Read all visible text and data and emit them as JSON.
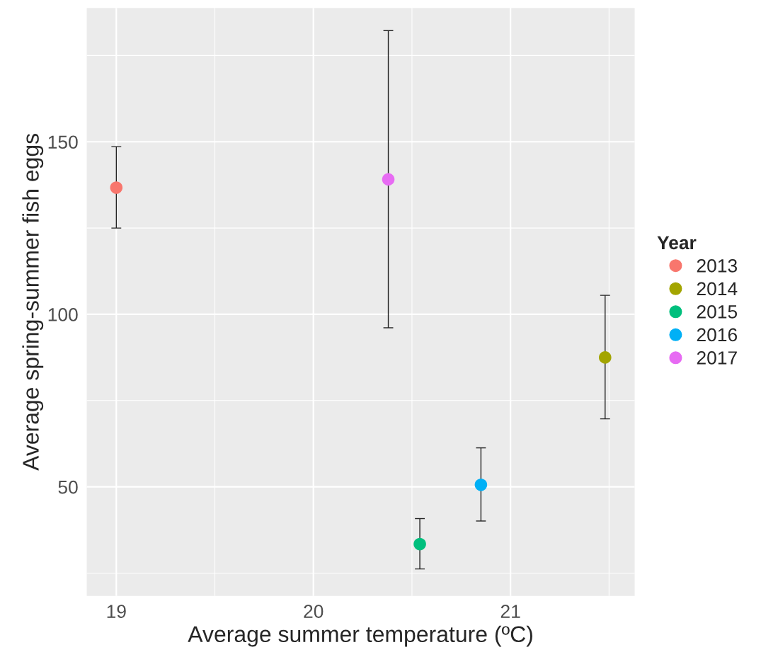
{
  "chart_data": {
    "type": "scatter",
    "xlabel": "Average summer temperature (ºC)",
    "ylabel": "Average spring-summer fish eggs",
    "legend_title": "Year",
    "legend": "right",
    "marker": "circle",
    "grid": true,
    "xlim": [
      18.85,
      21.63
    ],
    "ylim": [
      18.4,
      188.8
    ],
    "xticks": [
      19,
      {
        "value": 19.5,
        "label": null
      },
      20,
      {
        "value": 20.5,
        "label": null
      },
      21,
      {
        "value": 21.5,
        "label": null
      }
    ],
    "yticks": [
      {
        "value": 25,
        "label": null
      },
      50,
      {
        "value": 75,
        "label": null
      },
      100,
      {
        "value": 125,
        "label": null
      },
      150,
      {
        "value": 175,
        "label": null
      }
    ],
    "series": [
      {
        "name": "2013",
        "color": "#f8766d",
        "x": [
          19.0
        ],
        "values": [
          136.7
        ],
        "errors": [
          [
            125.0,
            148.6
          ]
        ]
      },
      {
        "name": "2014",
        "color": "#a3a500",
        "x": [
          21.48
        ],
        "values": [
          87.5
        ],
        "errors": [
          [
            69.7,
            105.5
          ]
        ]
      },
      {
        "name": "2015",
        "color": "#00bf7d",
        "x": [
          20.54
        ],
        "values": [
          33.4
        ],
        "errors": [
          [
            26.2,
            40.8
          ]
        ]
      },
      {
        "name": "2016",
        "color": "#00b0f6",
        "x": [
          20.85
        ],
        "values": [
          50.6
        ],
        "errors": [
          [
            40.1,
            61.3
          ]
        ]
      },
      {
        "name": "2017",
        "color": "#e76bf3",
        "x": [
          20.38
        ],
        "values": [
          139.1
        ],
        "errors": [
          [
            96.1,
            182.2
          ]
        ]
      }
    ]
  }
}
